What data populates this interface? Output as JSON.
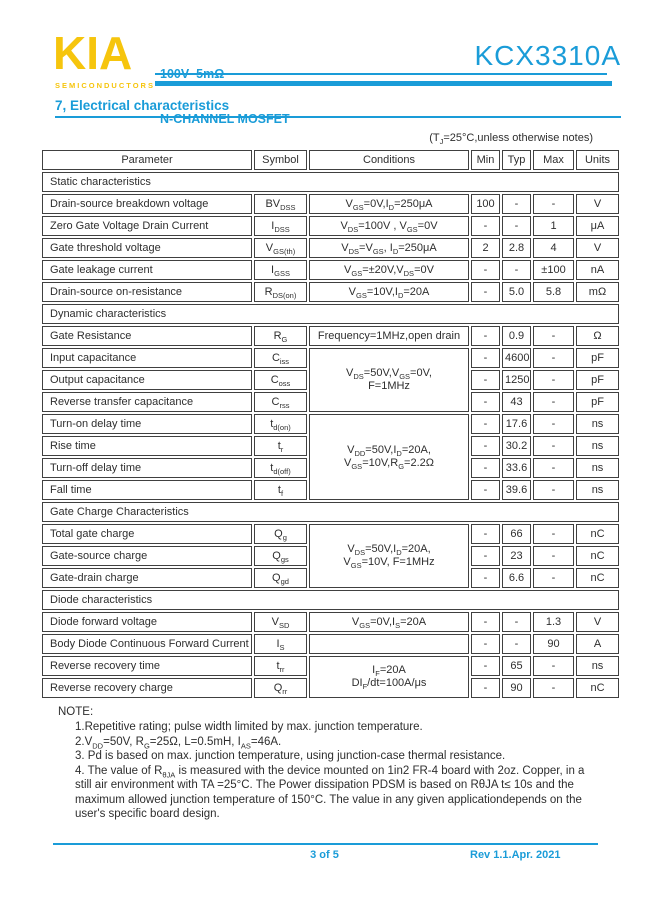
{
  "colors": {
    "accent_blue": "#1a9cd8",
    "logo_yellow": "#f6c50d",
    "text": "#2e2e2e",
    "border": "#404040"
  },
  "header": {
    "logo": "KIA",
    "logo_tagline": "SEMICONDUCTORS",
    "rating_line1": "100V  5mΩ",
    "rating_line2": "N-CHANNEL MOSFET",
    "part_number": "KCX3310A"
  },
  "section_title": "7, Electrical characteristics",
  "condition_note": "(T~J~=25°C,unless otherwise notes)",
  "table": {
    "headers": [
      "Parameter",
      "Symbol",
      "Conditions",
      "Min",
      "Typ",
      "Max",
      "Units"
    ],
    "rows": [
      {
        "type": "section",
        "label": "Static characteristics"
      },
      {
        "type": "data",
        "parameter": "Drain-source breakdown voltage",
        "symbol": "BV~DSS~",
        "conditions": "V~GS~=0V,I~D~=250μA",
        "min": "100",
        "typ": "-",
        "max": "-",
        "units": "V"
      },
      {
        "type": "data",
        "parameter": "Zero Gate Voltage Drain Current",
        "symbol": "I~DSS~",
        "conditions": "V~DS~=100V , V~GS~=0V",
        "min": "-",
        "typ": "-",
        "max": "1",
        "units": "μA"
      },
      {
        "type": "data",
        "parameter": "Gate threshold voltage",
        "symbol": "V~GS(th)~",
        "conditions": "V~DS~=V~GS~, I~D~=250μA",
        "min": "2",
        "typ": "2.8",
        "max": "4",
        "units": "V"
      },
      {
        "type": "data",
        "parameter": "Gate leakage current",
        "symbol": "I~GSS~",
        "conditions": "V~GS~=±20V,V~DS~=0V",
        "min": "-",
        "typ": "-",
        "max": "±100",
        "units": "nA"
      },
      {
        "type": "data",
        "parameter": "Drain-source on-resistance",
        "symbol": "R~DS(on)~",
        "conditions": "V~GS~=10V,I~D~=20A",
        "min": "-",
        "typ": "5.0",
        "max": "5.8",
        "units": "mΩ"
      },
      {
        "type": "section",
        "label": "Dynamic characteristics"
      },
      {
        "type": "data",
        "parameter": "Gate Resistance",
        "symbol": "R~G~",
        "conditions": "Frequency=1MHz,open drain",
        "min": "-",
        "typ": "0.9",
        "max": "-",
        "units": "Ω"
      },
      {
        "type": "data",
        "parameter": "Input capacitance",
        "symbol": "C~iss~",
        "conditions": "V~DS~=50V,V~GS~=0V,\nF=1MHz",
        "cond_span": 3,
        "min": "-",
        "typ": "4600",
        "max": "-",
        "units": "pF"
      },
      {
        "type": "data",
        "parameter": "Output capacitance",
        "symbol": "C~oss~",
        "min": "-",
        "typ": "1250",
        "max": "-",
        "units": "pF"
      },
      {
        "type": "data",
        "parameter": "Reverse transfer capacitance",
        "symbol": "C~rss~",
        "min": "-",
        "typ": "43",
        "max": "-",
        "units": "pF"
      },
      {
        "type": "data",
        "parameter": "Turn-on delay time",
        "symbol": "t~d(on)~",
        "conditions": "V~DD~=50V,I~D~=20A,\nV~GS~=10V,R~G~=2.2Ω",
        "cond_span": 4,
        "min": "-",
        "typ": "17.6",
        "max": "-",
        "units": "ns"
      },
      {
        "type": "data",
        "parameter": "Rise time",
        "symbol": "t~r~",
        "min": "-",
        "typ": "30.2",
        "max": "-",
        "units": "ns"
      },
      {
        "type": "data",
        "parameter": "Turn-off delay time",
        "symbol": "t~d(off)~",
        "min": "-",
        "typ": "33.6",
        "max": "-",
        "units": "ns"
      },
      {
        "type": "data",
        "parameter": "Fall time",
        "symbol": "t~f~",
        "min": "-",
        "typ": "39.6",
        "max": "-",
        "units": "ns"
      },
      {
        "type": "section",
        "label": "Gate Charge Characteristics"
      },
      {
        "type": "data",
        "parameter": "Total gate charge",
        "symbol": "Q~g~",
        "conditions": "V~DS~=50V,I~D~=20A,\nV~GS~=10V, F=1MHz",
        "cond_span": 3,
        "min": "-",
        "typ": "66",
        "max": "-",
        "units": "nC"
      },
      {
        "type": "data",
        "parameter": "Gate-source charge",
        "symbol": "Q~gs~",
        "min": "-",
        "typ": "23",
        "max": "-",
        "units": "nC"
      },
      {
        "type": "data",
        "parameter": "Gate-drain charge",
        "symbol": "Q~gd~",
        "min": "-",
        "typ": "6.6",
        "max": "-",
        "units": "nC"
      },
      {
        "type": "section",
        "label": "Diode characteristics"
      },
      {
        "type": "data",
        "parameter": "Diode forward voltage",
        "symbol": "V~SD~",
        "conditions": "V~GS~=0V,I~S~=20A",
        "min": "-",
        "typ": "-",
        "max": "1.3",
        "units": "V"
      },
      {
        "type": "data",
        "parameter": "Body Diode Continuous Forward Current",
        "symbol": "I~S~",
        "conditions": "",
        "min": "-",
        "typ": "-",
        "max": "90",
        "units": "A"
      },
      {
        "type": "data",
        "parameter": "Reverse recovery time",
        "symbol": "t~rr~",
        "conditions": "I~F~=20A\nDI~F~/dt=100A/μs",
        "cond_span": 2,
        "min": "-",
        "typ": "65",
        "max": "-",
        "units": "ns"
      },
      {
        "type": "data",
        "parameter": "Reverse recovery charge",
        "symbol": "Q~rr~",
        "min": "-",
        "typ": "90",
        "max": "-",
        "units": "nC"
      }
    ]
  },
  "notes": {
    "title": "NOTE:",
    "items": [
      "1.Repetitive rating; pulse width limited by max. junction temperature.",
      "2.V~DD~=50V, R~G~=25Ω, L=0.5mH, I~AS~=46A.",
      "3. Pd is based on max. junction temperature, using junction-case thermal resistance.",
      "4. The value of R~θJA~ is measured with the device mounted on 1in2 FR-4 board with 2oz. Copper, in a still air environment with TA =25°C. The Power dissipation PDSM is based on RθJA t≤ 10s and the maximum allowed junction temperature of 150°C. The value in any given applicationdepends on the user's specific board design."
    ]
  },
  "footer": {
    "page_indicator": "3 of 5",
    "revision": "Rev 1.1.Apr. 2021"
  }
}
